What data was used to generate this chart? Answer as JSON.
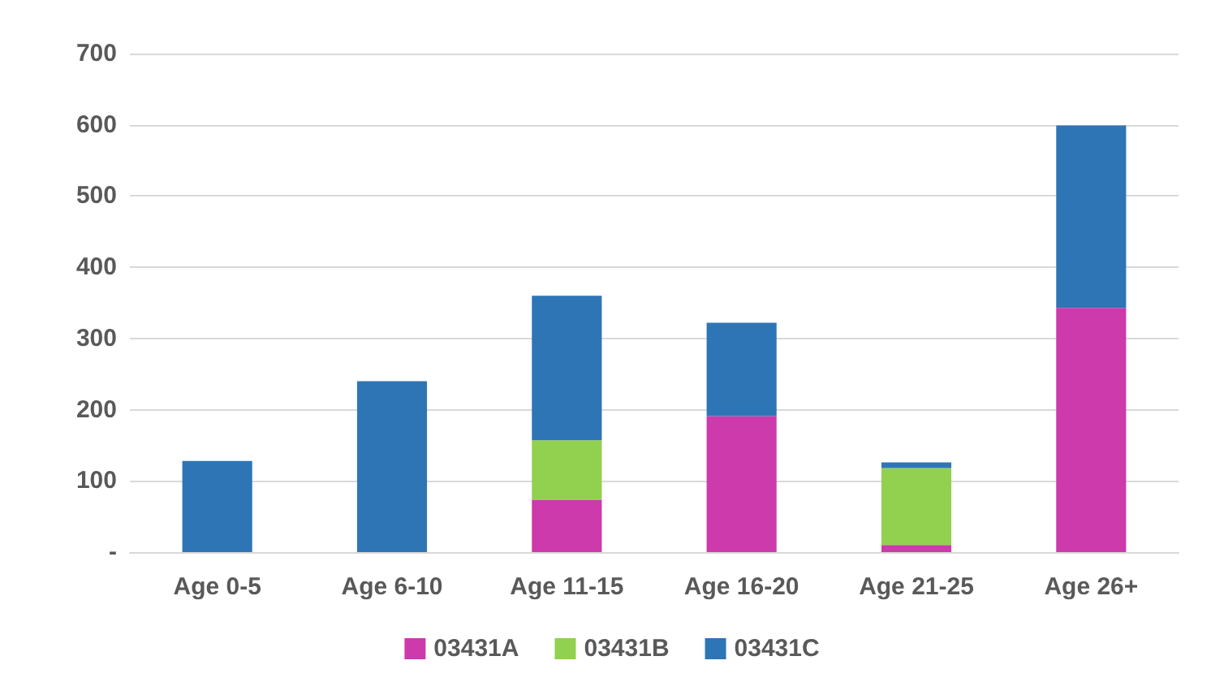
{
  "chart_data": {
    "type": "bar",
    "stacked": true,
    "categories": [
      "Age 0-5",
      "Age 6-10",
      "Age 11-15",
      "Age 16-20",
      "Age 21-25",
      "Age 26+"
    ],
    "series": [
      {
        "name": "03431A",
        "color": "#cc3aab",
        "values": [
          0,
          0,
          73,
          191,
          10,
          343
        ]
      },
      {
        "name": "03431B",
        "color": "#92d050",
        "values": [
          0,
          0,
          84,
          0,
          108,
          0
        ]
      },
      {
        "name": "03431C",
        "color": "#2e75b6",
        "values": [
          128,
          240,
          203,
          131,
          8,
          256
        ]
      }
    ],
    "ylim": [
      0,
      700
    ],
    "yticks": [
      {
        "value": 0,
        "label": "-"
      },
      100,
      200,
      300,
      400,
      500,
      600,
      700
    ],
    "grid": "y",
    "legend": "bottom"
  }
}
